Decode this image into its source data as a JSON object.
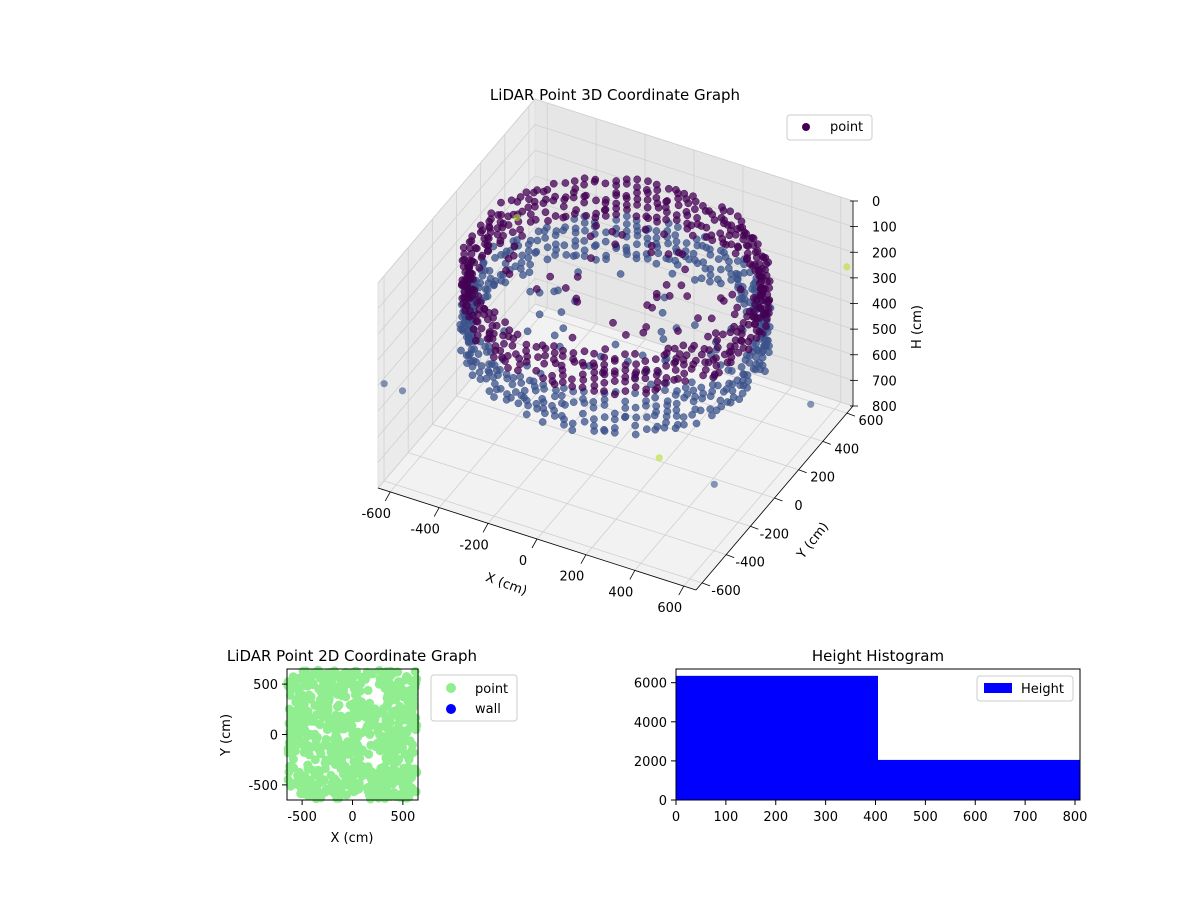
{
  "colors": {
    "point3d_dark": "#440154",
    "point3d_mid": "#3b528b",
    "point3d_light": "#b5de2b",
    "point2d": "#90ee90",
    "wall": "#0000ff",
    "hist": "#0000ff",
    "pane": "#f2f2f2",
    "grid": "#cccccc"
  },
  "chart_data": [
    {
      "type": "scatter",
      "title": "LiDAR Point 3D Coordinate Graph",
      "xlabel": "X (cm)",
      "ylabel": "Y (cm)",
      "zlabel": "H (cm)",
      "xticks": [
        "-600",
        "-400",
        "-200",
        "0",
        "200",
        "400",
        "600"
      ],
      "yticks": [
        "-600",
        "-400",
        "-200",
        "0",
        "200",
        "400",
        "600"
      ],
      "zticks": [
        "0",
        "100",
        "200",
        "300",
        "400",
        "500",
        "600",
        "700",
        "800"
      ],
      "xlim": [
        -650,
        650
      ],
      "ylim": [
        -650,
        650
      ],
      "zlim": [
        0,
        800
      ],
      "zinverted": true,
      "legend": [
        {
          "label": "point",
          "marker": "circle"
        }
      ],
      "legend_position": "top-right",
      "grid": true,
      "series": [
        {
          "name": "point",
          "description_shape": "cylindrical wall of radius ~550 cm, heights 0-400 cm dense, sparse interior points"
        }
      ],
      "sample_points": {
        "ring_radius": 550,
        "ring_h_min": 100,
        "ring_h_max": 400,
        "interior": [
          [
            -100,
            200,
            150
          ],
          [
            50,
            300,
            120
          ],
          [
            150,
            250,
            140
          ],
          [
            -50,
            350,
            160
          ],
          [
            200,
            100,
            330
          ],
          [
            100,
            -100,
            380
          ],
          [
            -150,
            -200,
            300
          ],
          [
            250,
            -150,
            350
          ],
          [
            300,
            50,
            260
          ],
          [
            0,
            0,
            400
          ],
          [
            -300,
            100,
            340
          ],
          [
            350,
            250,
            370
          ],
          [
            -250,
            300,
            220
          ],
          [
            400,
            -100,
            390
          ],
          [
            120,
            180,
            230
          ]
        ],
        "outliers": [
          [
            -600,
            -700,
            350
          ],
          [
            -650,
            500,
            380
          ],
          [
            700,
            -600,
            400
          ],
          [
            600,
            700,
            300
          ],
          [
            -550,
            -650,
            390
          ],
          [
            500,
            -650,
            330
          ],
          [
            650,
            300,
            600
          ]
        ]
      }
    },
    {
      "type": "scatter",
      "title": "LiDAR Point 2D Coordinate Graph",
      "xlabel": "X (cm)",
      "ylabel": "Y (cm)",
      "xticks": [
        "-500",
        "0",
        "500"
      ],
      "yticks": [
        "-500",
        "0",
        "500"
      ],
      "xlim": [
        -650,
        650
      ],
      "ylim": [
        -650,
        650
      ],
      "legend": [
        {
          "label": "point",
          "marker": "circle"
        },
        {
          "label": "wall",
          "marker": "circle"
        }
      ],
      "legend_position": "outside-right",
      "series": [
        {
          "name": "point",
          "description_shape": "dense cloud filling the square with a few interior gaps"
        },
        {
          "name": "wall",
          "values": []
        }
      ]
    },
    {
      "type": "bar",
      "title": "Height Histogram",
      "xlabel": "",
      "ylabel": "",
      "xticks": [
        "0",
        "100",
        "200",
        "300",
        "400",
        "500",
        "600",
        "700",
        "800"
      ],
      "yticks": [
        "0",
        "2000",
        "4000",
        "6000"
      ],
      "xlim": [
        0,
        810
      ],
      "ylim": [
        0,
        6700
      ],
      "bins": [
        {
          "x0": 0,
          "x1": 405,
          "count": 6350
        },
        {
          "x0": 405,
          "x1": 810,
          "count": 2050
        }
      ],
      "legend": [
        {
          "label": "Height"
        }
      ],
      "legend_position": "top-right"
    }
  ]
}
